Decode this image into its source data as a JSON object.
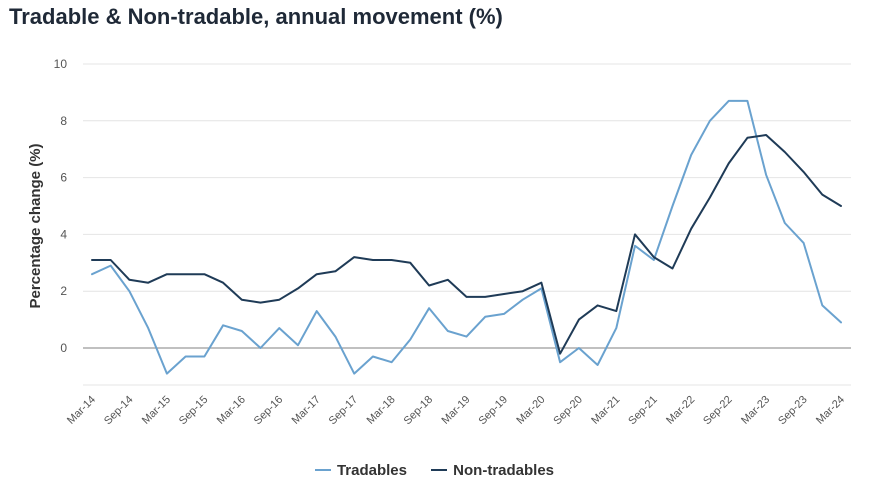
{
  "title": "Tradable & Non-tradable, annual movement (%)",
  "colors": {
    "tradables": "#6aa2cf",
    "non_tradables": "#1f3b57",
    "grid": "#e4e4e4",
    "zero_line": "#9a9a9a"
  },
  "chart_data": {
    "type": "line",
    "title": "Tradable & Non-tradable, annual movement (%)",
    "ylabel": "Percentage change (%)",
    "xlabel": "",
    "ylim": [
      -1.5,
      10
    ],
    "yticks": [
      0,
      2,
      4,
      6,
      8,
      10
    ],
    "grid": true,
    "legend_position": "bottom",
    "x": [
      "Mar-14",
      "Jun-14",
      "Sep-14",
      "Dec-14",
      "Mar-15",
      "Jun-15",
      "Sep-15",
      "Dec-15",
      "Mar-16",
      "Jun-16",
      "Sep-16",
      "Dec-16",
      "Mar-17",
      "Jun-17",
      "Sep-17",
      "Dec-17",
      "Mar-18",
      "Jun-18",
      "Sep-18",
      "Dec-18",
      "Mar-19",
      "Jun-19",
      "Sep-19",
      "Dec-19",
      "Mar-20",
      "Jun-20",
      "Sep-20",
      "Dec-20",
      "Mar-21",
      "Jun-21",
      "Sep-21",
      "Dec-21",
      "Mar-22",
      "Jun-22",
      "Sep-22",
      "Dec-22",
      "Mar-23",
      "Jun-23",
      "Sep-23",
      "Dec-23",
      "Mar-24"
    ],
    "x_tick_labels": [
      "Mar-14",
      "Sep-14",
      "Mar-15",
      "Sep-15",
      "Mar-16",
      "Sep-16",
      "Mar-17",
      "Sep-17",
      "Mar-18",
      "Sep-18",
      "Mar-19",
      "Sep-19",
      "Mar-20",
      "Sep-20",
      "Mar-21",
      "Sep-21",
      "Mar-22",
      "Sep-22",
      "Mar-23",
      "Sep-23",
      "Mar-24"
    ],
    "series": [
      {
        "name": "Tradables",
        "color": "#6aa2cf",
        "values": [
          2.6,
          2.9,
          2.0,
          0.7,
          -0.9,
          -0.3,
          -0.3,
          0.8,
          0.6,
          0.0,
          0.7,
          0.1,
          1.3,
          0.4,
          -0.9,
          -0.3,
          -0.5,
          0.3,
          1.4,
          0.6,
          0.4,
          1.1,
          1.2,
          1.7,
          2.1,
          -0.5,
          0.0,
          -0.6,
          0.7,
          3.6,
          3.1,
          5.0,
          6.8,
          8.0,
          8.7,
          8.7,
          6.1,
          4.4,
          3.7,
          1.5,
          0.9
        ]
      },
      {
        "name": "Non-tradables",
        "color": "#1f3b57",
        "values": [
          3.1,
          3.1,
          2.4,
          2.3,
          2.6,
          2.6,
          2.6,
          2.3,
          1.7,
          1.6,
          1.7,
          2.1,
          2.6,
          2.7,
          3.2,
          3.1,
          3.1,
          3.0,
          2.2,
          2.4,
          1.8,
          1.8,
          1.9,
          2.0,
          2.3,
          -0.2,
          1.0,
          1.5,
          1.3,
          4.0,
          3.2,
          2.8,
          4.2,
          5.3,
          6.5,
          7.4,
          7.5,
          6.9,
          6.2,
          5.4,
          5.0
        ]
      }
    ]
  }
}
